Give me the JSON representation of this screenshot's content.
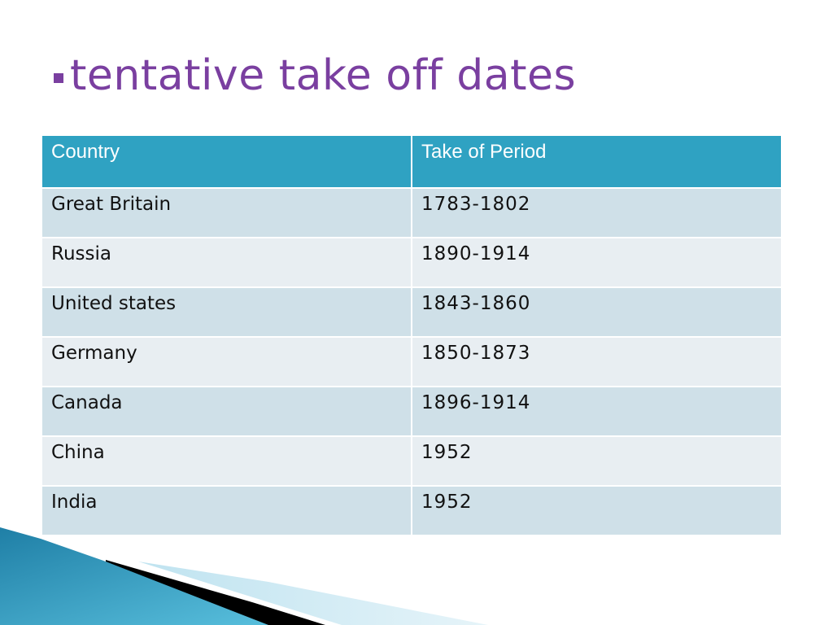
{
  "slide": {
    "title": "tentative take off dates"
  },
  "table": {
    "headers": [
      "Country",
      "Take of Period"
    ],
    "rows": [
      [
        "Great Britain",
        "1783-1802"
      ],
      [
        "Russia",
        "1890-1914"
      ],
      [
        "United states",
        "1843-1860"
      ],
      [
        "Germany",
        "1850-1873"
      ],
      [
        "Canada",
        "1896-1914"
      ],
      [
        "China",
        "1952"
      ],
      [
        "India",
        "1952"
      ]
    ]
  },
  "colors": {
    "title": "#7a3fa0",
    "header_bg": "#2fa2c2",
    "row_dark": "#cfe0e8",
    "row_light": "#e8eef2"
  }
}
